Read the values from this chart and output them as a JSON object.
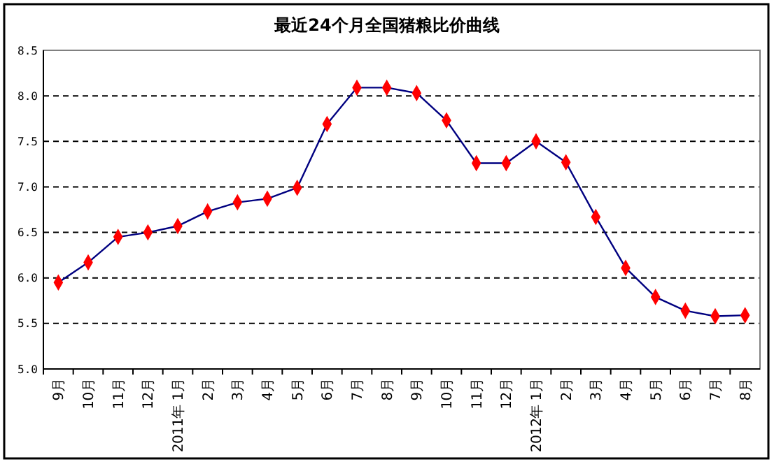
{
  "chart_data": {
    "type": "line",
    "title": "最近24个月全国猪粮比价曲线",
    "categories": [
      "9月",
      "10月",
      "11月",
      "12月",
      "2011年 1月",
      "2月",
      "3月",
      "4月",
      "5月",
      "6月",
      "7月",
      "8月",
      "9月",
      "10月",
      "11月",
      "12月",
      "2012年 1月",
      "2月",
      "3月",
      "4月",
      "5月",
      "6月",
      "7月",
      "8月"
    ],
    "series": [
      {
        "color": "#000080",
        "values": [
          5.95,
          6.17,
          6.45,
          6.5,
          6.57,
          6.73,
          6.83,
          6.87,
          6.99,
          7.69,
          8.09,
          8.09,
          8.03,
          7.73,
          7.26,
          7.26,
          7.5,
          7.27,
          6.67,
          6.11,
          5.79,
          5.64,
          5.58,
          5.59
        ]
      }
    ],
    "ylim": [
      5,
      8.5
    ],
    "yticks": [
      {
        "value": 5,
        "label": "5.0"
      },
      {
        "value": 5.5,
        "label": "5.5"
      },
      {
        "value": 6,
        "label": "6.0"
      },
      {
        "value": 6.5,
        "label": "6.5"
      },
      {
        "value": 7,
        "label": "7.0"
      },
      {
        "value": 7.5,
        "label": "7.5"
      },
      {
        "value": 8,
        "label": "8.0"
      },
      {
        "value": 8.5,
        "label": "8.5"
      }
    ],
    "grid": "y",
    "marker": "diamond",
    "line_style": "solid"
  }
}
